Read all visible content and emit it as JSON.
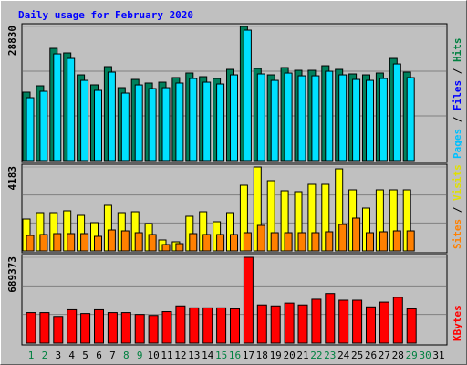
{
  "chart_data": [
    {
      "type": "bar",
      "title": "Daily usage for February 2020",
      "categories": [
        "1",
        "2",
        "3",
        "4",
        "5",
        "6",
        "7",
        "8",
        "9",
        "10",
        "11",
        "12",
        "13",
        "14",
        "15",
        "16",
        "17",
        "18",
        "19",
        "20",
        "21",
        "22",
        "23",
        "24",
        "25",
        "26",
        "27",
        "28",
        "29",
        "30",
        "31"
      ],
      "category_colors": [
        "#008040",
        "#008040",
        "#000000",
        "#000000",
        "#000000",
        "#000000",
        "#000000",
        "#008040",
        "#008040",
        "#000000",
        "#000000",
        "#000000",
        "#000000",
        "#000000",
        "#008040",
        "#008040",
        "#000000",
        "#000000",
        "#000000",
        "#000000",
        "#000000",
        "#008040",
        "#008040",
        "#000000",
        "#000000",
        "#000000",
        "#000000",
        "#000000",
        "#008040",
        "#008040",
        "#000000"
      ],
      "y_label_parts": [
        {
          "text": "Pages",
          "color": "#00c0ff"
        },
        {
          "text": "Files",
          "color": "#0000ff"
        },
        {
          "text": "Hits",
          "color": "#008040"
        }
      ],
      "label_separator": " / ",
      "ylim": [
        0,
        28830
      ],
      "yticks": [
        28830
      ],
      "series": [
        {
          "name": "Hits",
          "color": "#00805c",
          "values": [
            14710,
            16080,
            24120,
            23140,
            18430,
            16280,
            20200,
            15690,
            17450,
            16670,
            16860,
            17850,
            18830,
            18040,
            17650,
            19610,
            28830,
            19810,
            18430,
            20000,
            19410,
            19410,
            20390,
            19610,
            18630,
            18430,
            18830,
            21960,
            19020,
            null,
            null
          ]
        },
        {
          "name": "Files",
          "color": "#00e0ff",
          "values": [
            13530,
            14900,
            22940,
            21960,
            17250,
            15100,
            19020,
            14510,
            16270,
            15490,
            15680,
            16670,
            17650,
            16860,
            16470,
            18430,
            28040,
            18630,
            17250,
            18820,
            18230,
            18230,
            19210,
            18430,
            17450,
            17250,
            17650,
            20780,
            17840,
            null,
            null
          ]
        }
      ]
    },
    {
      "type": "bar",
      "y_label_parts": [
        {
          "text": "Sites",
          "color": "#ff8000"
        },
        {
          "text": "Visits",
          "color": "#e0e000"
        }
      ],
      "ylim": [
        0,
        4183
      ],
      "yticks": [
        4183
      ],
      "series": [
        {
          "name": "Visits",
          "color": "#ffff00",
          "values": [
            1591,
            1910,
            1910,
            2001,
            1773,
            1410,
            2274,
            1910,
            1955,
            1364,
            546,
            455,
            1728,
            1955,
            1455,
            1910,
            3274,
            4183,
            3501,
            3001,
            2956,
            3319,
            3319,
            4092,
            3046,
            2137,
            3046,
            3046,
            3046,
            null,
            null
          ]
        },
        {
          "name": "Sites",
          "color": "#ff8000",
          "values": [
            773,
            819,
            864,
            864,
            864,
            728,
            1046,
            1000,
            909,
            819,
            318,
            364,
            864,
            819,
            819,
            819,
            909,
            1273,
            909,
            909,
            909,
            909,
            955,
            1319,
            1637,
            909,
            955,
            1000,
            1000,
            null,
            null
          ]
        }
      ]
    },
    {
      "type": "bar",
      "y_label_parts": [
        {
          "text": "KBytes",
          "color": "#ff0000"
        }
      ],
      "ylim": [
        0,
        689373
      ],
      "yticks": [
        689373
      ],
      "series": [
        {
          "name": "KBytes",
          "color": "#ff0000",
          "values": [
            245100,
            245100,
            214500,
            268100,
            237500,
            268100,
            245100,
            245100,
            229800,
            222100,
            252800,
            298700,
            283400,
            283400,
            283400,
            275800,
            689373,
            306400,
            298700,
            321700,
            306400,
            352400,
            398300,
            344700,
            344700,
            291100,
            329400,
            367700,
            275800,
            null,
            null
          ]
        }
      ]
    }
  ]
}
